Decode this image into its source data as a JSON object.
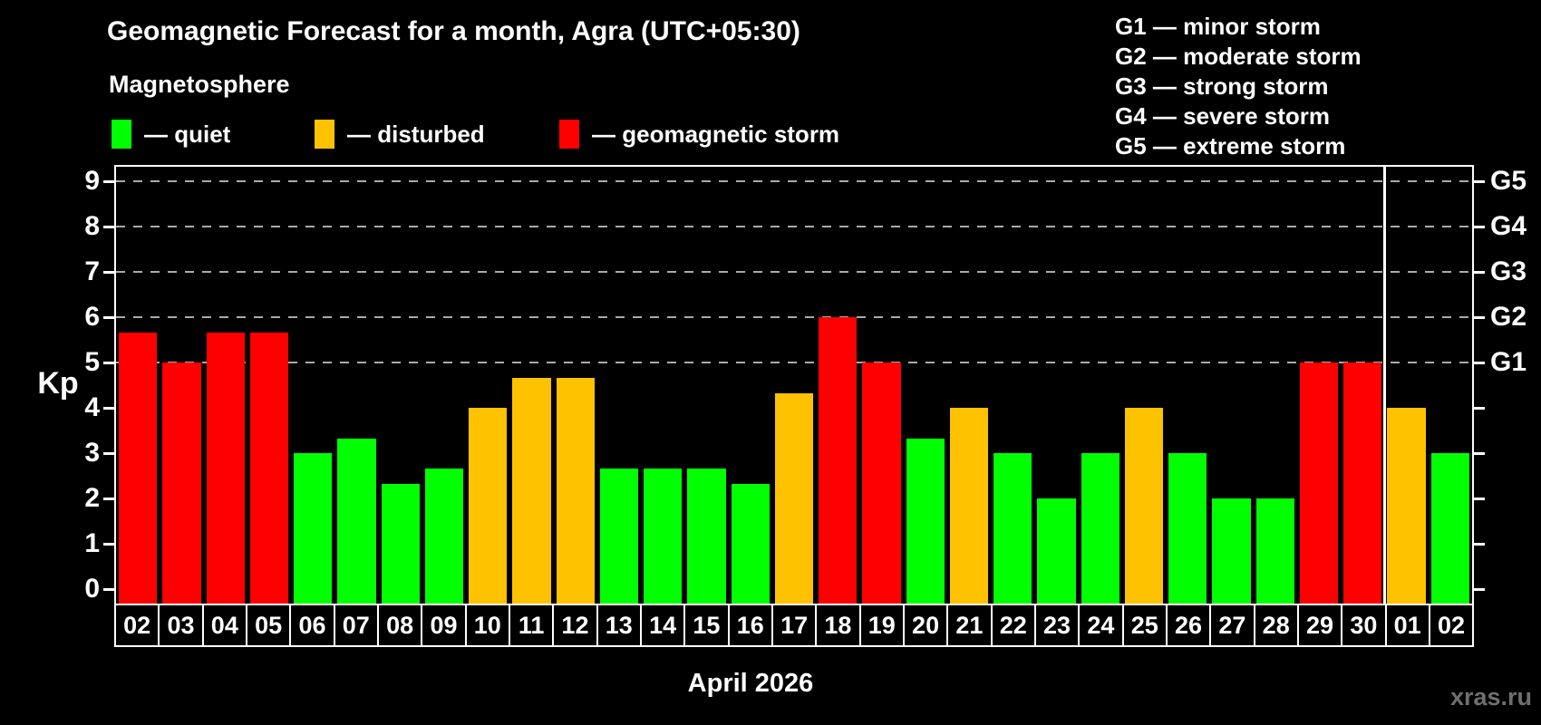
{
  "title": "Geomagnetic Forecast for a month, Agra (UTC+05:30)",
  "subtitle": "Magnetosphere",
  "watermark": "xras.ru",
  "kp_legend": {
    "items": [
      {
        "label": "— quiet",
        "level": "quiet"
      },
      {
        "label": "— disturbed",
        "level": "disturbed"
      },
      {
        "label": "— geomagnetic storm",
        "level": "storm"
      }
    ]
  },
  "g_legend": {
    "items": [
      "G1 — minor storm",
      "G2 — moderate storm",
      "G3 — strong storm",
      "G4 — severe storm",
      "G5 — extreme storm"
    ]
  },
  "chart_data": {
    "type": "bar",
    "title": "Geomagnetic Forecast for a month, Agra (UTC+05:30)",
    "ylabel": "Kp",
    "xlabel": "April 2026",
    "ylim": [
      0,
      9
    ],
    "yticks": [
      0,
      1,
      2,
      3,
      4,
      5,
      6,
      7,
      8,
      9
    ],
    "gridlines_at": [
      5,
      6,
      7,
      8,
      9
    ],
    "grid": "dashed-horizontal",
    "legend_position": "top-left",
    "right_axis_labels": [
      {
        "value": 5,
        "label": "G1"
      },
      {
        "value": 6,
        "label": "G2"
      },
      {
        "value": 7,
        "label": "G3"
      },
      {
        "value": 8,
        "label": "G4"
      },
      {
        "value": 9,
        "label": "G5"
      }
    ],
    "levels": {
      "quiet": "#00ff00",
      "disturbed": "#ffc200",
      "storm": "#ff0000"
    },
    "month_divider_after_index": 28,
    "bars": [
      {
        "day": "02",
        "value": 5.67,
        "level": "storm"
      },
      {
        "day": "03",
        "value": 5.0,
        "level": "storm"
      },
      {
        "day": "04",
        "value": 5.67,
        "level": "storm"
      },
      {
        "day": "05",
        "value": 5.67,
        "level": "storm"
      },
      {
        "day": "06",
        "value": 3.0,
        "level": "quiet"
      },
      {
        "day": "07",
        "value": 3.33,
        "level": "quiet"
      },
      {
        "day": "08",
        "value": 2.33,
        "level": "quiet"
      },
      {
        "day": "09",
        "value": 2.67,
        "level": "quiet"
      },
      {
        "day": "10",
        "value": 4.0,
        "level": "disturbed"
      },
      {
        "day": "11",
        "value": 4.67,
        "level": "disturbed"
      },
      {
        "day": "12",
        "value": 4.67,
        "level": "disturbed"
      },
      {
        "day": "13",
        "value": 2.67,
        "level": "quiet"
      },
      {
        "day": "14",
        "value": 2.67,
        "level": "quiet"
      },
      {
        "day": "15",
        "value": 2.67,
        "level": "quiet"
      },
      {
        "day": "16",
        "value": 2.33,
        "level": "quiet"
      },
      {
        "day": "17",
        "value": 4.33,
        "level": "disturbed"
      },
      {
        "day": "18",
        "value": 6.0,
        "level": "storm"
      },
      {
        "day": "19",
        "value": 5.0,
        "level": "storm"
      },
      {
        "day": "20",
        "value": 3.33,
        "level": "quiet"
      },
      {
        "day": "21",
        "value": 4.0,
        "level": "disturbed"
      },
      {
        "day": "22",
        "value": 3.0,
        "level": "quiet"
      },
      {
        "day": "23",
        "value": 2.0,
        "level": "quiet"
      },
      {
        "day": "24",
        "value": 3.0,
        "level": "quiet"
      },
      {
        "day": "25",
        "value": 4.0,
        "level": "disturbed"
      },
      {
        "day": "26",
        "value": 3.0,
        "level": "quiet"
      },
      {
        "day": "27",
        "value": 2.0,
        "level": "quiet"
      },
      {
        "day": "28",
        "value": 2.0,
        "level": "quiet"
      },
      {
        "day": "29",
        "value": 5.0,
        "level": "storm"
      },
      {
        "day": "30",
        "value": 5.0,
        "level": "storm"
      },
      {
        "day": "01",
        "value": 4.0,
        "level": "disturbed"
      },
      {
        "day": "02",
        "value": 3.0,
        "level": "quiet"
      }
    ]
  }
}
